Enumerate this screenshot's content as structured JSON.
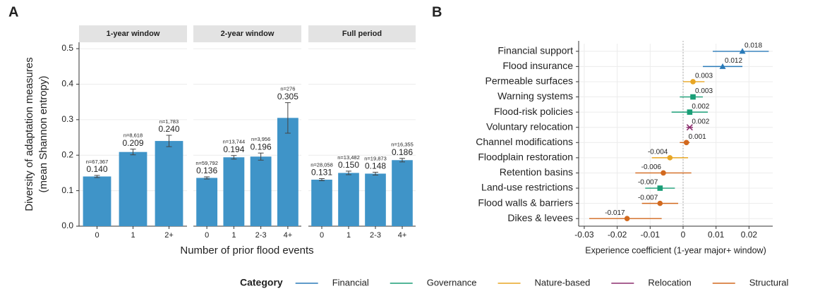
{
  "chart_data": [
    {
      "type": "faceted_bar",
      "panel": "A",
      "ylabel": [
        "Diversity of adaptation measures",
        "(mean Shannon entropy)"
      ],
      "xlabel": "Number of prior flood events",
      "color": "#3f94c8",
      "ylim": [
        0,
        0.518
      ],
      "yticks": [
        {
          "value": 0,
          "label": "0.0"
        },
        0.1,
        0.2,
        0.3,
        0.4,
        0.5
      ],
      "grid": true,
      "facets": [
        {
          "title": "1-year window",
          "categories": [
            "0",
            "1",
            "2+"
          ],
          "values": [
            0.14,
            0.209,
            0.24
          ],
          "value_labels": [
            "0.140",
            "0.209",
            "0.240"
          ],
          "errors": [
            0.003,
            0.008,
            0.016
          ],
          "n_labels": [
            "n=67,367",
            "n=8,618",
            "n=1,783"
          ]
        },
        {
          "title": "2-year window",
          "categories": [
            "0",
            "1",
            "2-3",
            "4+"
          ],
          "values": [
            0.136,
            0.194,
            0.196,
            0.305
          ],
          "value_labels": [
            "0.136",
            "0.194",
            "0.196",
            "0.305"
          ],
          "errors": [
            0.003,
            0.005,
            0.01,
            0.043
          ],
          "n_labels": [
            "n=59,792",
            "n=13,744",
            "n=3,956",
            "n=276"
          ]
        },
        {
          "title": "Full period",
          "categories": [
            "0",
            "1",
            "2-3",
            "4+"
          ],
          "values": [
            0.131,
            0.15,
            0.148,
            0.186
          ],
          "value_labels": [
            "0.131",
            "0.150",
            "0.148",
            "0.186"
          ],
          "errors": [
            0.003,
            0.005,
            0.004,
            0.005
          ],
          "n_labels": [
            "n=28,058",
            "n=13,482",
            "n=19,873",
            "n=16,355"
          ]
        }
      ]
    },
    {
      "type": "dot",
      "panel": "B",
      "xlabel": "Experience coefficient (1-year major+ window)",
      "xlim": [
        -0.0317,
        0.0272
      ],
      "xticks": [
        -0.03,
        -0.02,
        -0.01,
        0,
        0.01,
        0.02
      ],
      "grid": true,
      "categories": [
        "Financial support",
        "Flood insurance",
        "Permeable surfaces",
        "Warning systems",
        "Flood-risk policies",
        "Voluntary relocation",
        "Channel modifications",
        "Floodplain restoration",
        "Retention basins",
        "Land-use restrictions",
        "Flood walls & barriers",
        "Dikes & levees"
      ],
      "values": [
        0.018,
        0.012,
        0.003,
        0.003,
        0.002,
        0.002,
        0.001,
        -0.004,
        -0.006,
        -0.007,
        -0.007,
        -0.017
      ],
      "ci_low": [
        0.009,
        0.006,
        0.0,
        -0.001,
        -0.0035,
        0.001,
        -0.001,
        -0.0095,
        -0.0145,
        -0.0115,
        -0.0125,
        -0.0285
      ],
      "ci_high": [
        0.026,
        0.018,
        0.0065,
        0.006,
        0.0075,
        0.003,
        0.002,
        0.0015,
        0.0025,
        -0.0025,
        -0.0015,
        -0.0065
      ],
      "group": [
        "Financial",
        "Financial",
        "Nature-based",
        "Governance",
        "Governance",
        "Relocation",
        "Structural",
        "Nature-based",
        "Structural",
        "Governance",
        "Structural",
        "Structural"
      ],
      "legend_title": "Category",
      "legend": "bottom",
      "series": [
        {
          "name": "Financial",
          "color": "#2a7ab8",
          "shape": "triangle"
        },
        {
          "name": "Governance",
          "color": "#1a9e77",
          "shape": "square"
        },
        {
          "name": "Nature-based",
          "color": "#e8a624",
          "shape": "circle"
        },
        {
          "name": "Relocation",
          "color": "#8c2d6e",
          "shape": "cross"
        },
        {
          "name": "Structural",
          "color": "#d2691e",
          "shape": "circle"
        }
      ]
    }
  ]
}
